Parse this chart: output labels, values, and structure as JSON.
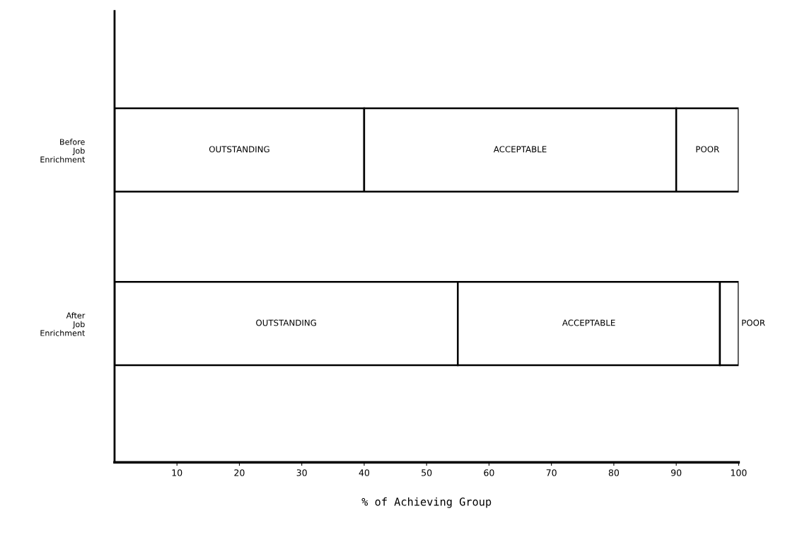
{
  "chart_data": {
    "type": "bar",
    "orientation": "horizontal",
    "stacked": true,
    "xlabel": "% of Achieving Group",
    "categories": [
      "Before Job Enrichment",
      "After Job Enrichment"
    ],
    "series": [
      {
        "name": "OUTSTANDING",
        "color": "#ffffff",
        "values": [
          40,
          55
        ]
      },
      {
        "name": "ACCEPTABLE",
        "color": "#ffffff",
        "values": [
          50,
          42
        ]
      },
      {
        "name": "POOR",
        "color": "#ffffff",
        "values": [
          10,
          3
        ]
      }
    ],
    "xlim": [
      0,
      100
    ],
    "xticks": [
      10,
      20,
      30,
      40,
      50,
      60,
      70,
      80,
      90,
      100
    ],
    "grid": false,
    "legend": false
  }
}
